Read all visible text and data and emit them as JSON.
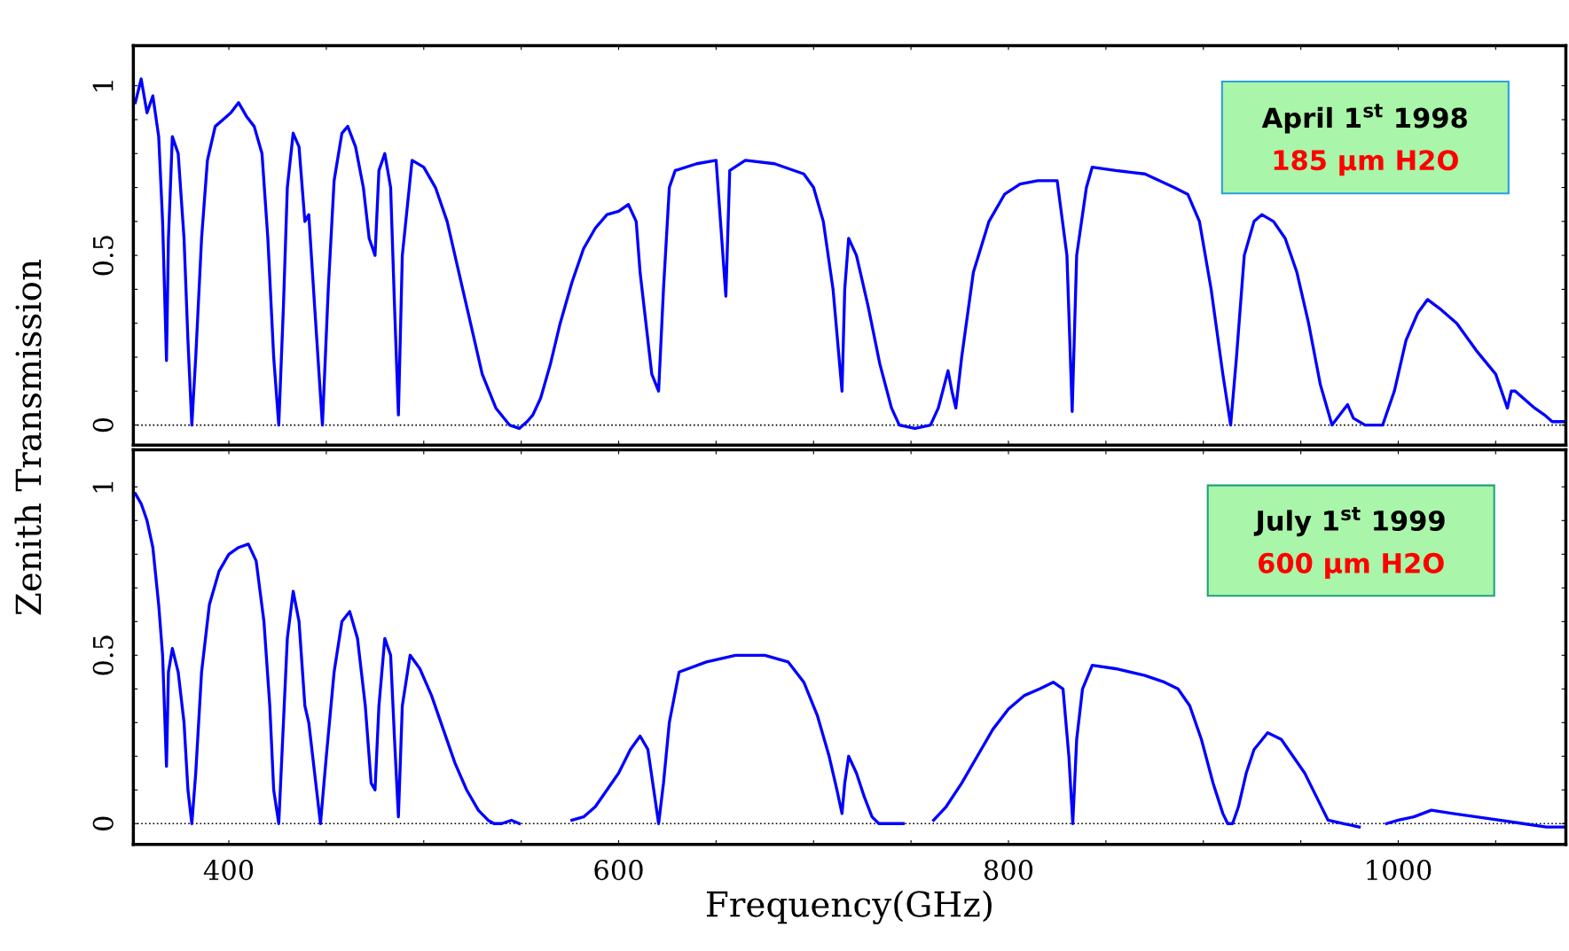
{
  "chart_data": [
    {
      "type": "line",
      "ylabel": "Zenith Transmission",
      "annotations": [
        "April 1$^{st}$ 1998",
        "185 µm H2O"
      ],
      "xlim": [
        351,
        1086
      ],
      "ylim": [
        -0.059,
        1.118
      ],
      "xticks": [
        {
          "value": 400,
          "label": null
        },
        {
          "value": 450,
          "label": null
        },
        {
          "value": 500,
          "label": null
        },
        {
          "value": 550,
          "label": null
        },
        {
          "value": 600,
          "label": null
        },
        {
          "value": 650,
          "label": null
        },
        {
          "value": 700,
          "label": null
        },
        {
          "value": 750,
          "label": null
        },
        {
          "value": 800,
          "label": null
        },
        {
          "value": 850,
          "label": null
        },
        {
          "value": 900,
          "label": null
        },
        {
          "value": 950,
          "label": null
        },
        {
          "value": 1000,
          "label": null
        },
        {
          "value": 1050,
          "label": null
        }
      ],
      "yticks": [
        0,
        {
          "value": 0.1,
          "label": null
        },
        {
          "value": 0.2,
          "label": null
        },
        {
          "value": 0.3,
          "label": null
        },
        {
          "value": 0.4,
          "label": null
        },
        0.5,
        {
          "value": 0.6,
          "label": null
        },
        {
          "value": 0.7,
          "label": null
        },
        {
          "value": 0.8,
          "label": null
        },
        {
          "value": 0.9,
          "label": null
        },
        1
      ],
      "tick_labels": "y",
      "grid": false,
      "ref_lines": [
        {
          "axis": "y",
          "value": 0,
          "color": "#000000",
          "line_style": "dotted"
        }
      ],
      "series": [
        {
          "color": "#0000ff",
          "x": [
            352,
            355,
            358,
            361,
            364,
            366,
            368,
            369,
            371,
            374,
            377,
            379,
            381,
            383,
            386,
            389,
            393,
            397,
            401,
            405,
            409,
            413,
            417,
            420,
            423,
            425.6,
            428,
            430,
            433,
            436,
            439,
            441,
            444,
            448,
            451,
            454,
            458,
            461,
            465,
            469,
            472,
            475,
            477,
            480,
            483,
            485,
            487,
            489,
            494,
            500,
            506,
            512,
            518,
            524,
            530,
            537,
            544,
            549,
            553,
            556,
            560,
            565,
            570,
            576,
            582,
            588,
            594,
            600,
            605,
            609,
            611,
            614,
            617,
            620.5,
            623,
            626,
            629,
            640,
            650,
            655,
            657,
            665,
            680,
            695,
            700,
            705,
            710,
            714.6,
            716,
            718,
            722,
            728,
            734,
            740,
            744,
            752,
            760,
            764,
            769,
            771,
            773,
            776,
            782,
            790,
            798,
            806,
            815,
            825,
            830,
            832.7,
            835,
            840,
            843,
            855,
            870,
            885,
            892,
            898,
            904,
            910,
            914,
            917,
            921,
            926,
            930,
            936,
            942,
            948,
            954,
            960,
            966,
            970,
            974,
            977,
            983,
            992,
            998,
            1004,
            1010,
            1015,
            1022,
            1030,
            1040,
            1050,
            1056,
            1058,
            1060,
            1064,
            1070,
            1075,
            1079,
            1085
          ],
          "values": [
            0.95,
            1.02,
            0.92,
            0.97,
            0.85,
            0.6,
            0.19,
            0.55,
            0.85,
            0.8,
            0.55,
            0.25,
            0.0,
            0.2,
            0.55,
            0.78,
            0.88,
            0.9,
            0.92,
            0.95,
            0.91,
            0.88,
            0.8,
            0.55,
            0.2,
            0.0,
            0.35,
            0.7,
            0.86,
            0.82,
            0.6,
            0.62,
            0.35,
            0.0,
            0.4,
            0.72,
            0.86,
            0.88,
            0.82,
            0.7,
            0.55,
            0.5,
            0.75,
            0.8,
            0.7,
            0.35,
            0.03,
            0.5,
            0.78,
            0.76,
            0.7,
            0.6,
            0.45,
            0.3,
            0.15,
            0.05,
            0.0,
            -0.01,
            0.01,
            0.03,
            0.08,
            0.18,
            0.3,
            0.42,
            0.52,
            0.58,
            0.62,
            0.63,
            0.65,
            0.6,
            0.45,
            0.3,
            0.15,
            0.1,
            0.4,
            0.7,
            0.75,
            0.77,
            0.78,
            0.38,
            0.75,
            0.78,
            0.77,
            0.74,
            0.7,
            0.6,
            0.4,
            0.1,
            0.4,
            0.55,
            0.5,
            0.35,
            0.18,
            0.05,
            0.0,
            -0.01,
            0.0,
            0.05,
            0.16,
            0.1,
            0.05,
            0.2,
            0.45,
            0.6,
            0.68,
            0.71,
            0.72,
            0.72,
            0.5,
            0.04,
            0.5,
            0.7,
            0.76,
            0.75,
            0.74,
            0.7,
            0.68,
            0.6,
            0.4,
            0.15,
            0.0,
            0.2,
            0.5,
            0.6,
            0.62,
            0.6,
            0.55,
            0.45,
            0.3,
            0.12,
            0.0,
            0.03,
            0.06,
            0.02,
            0.0,
            0.0,
            0.1,
            0.25,
            0.33,
            0.37,
            0.34,
            0.3,
            0.22,
            0.15,
            0.05,
            0.1,
            0.1,
            0.08,
            0.05,
            0.03,
            0.01,
            0.01
          ]
        }
      ]
    },
    {
      "type": "line",
      "xlabel": "Frequency(GHz)",
      "annotations": [
        "July 1$^{st}$ 1999",
        "600 µm H2O"
      ],
      "xlim": [
        351,
        1086
      ],
      "ylim": [
        -0.062,
        1.11
      ],
      "xticks": [
        400,
        {
          "value": 450,
          "label": null
        },
        {
          "value": 500,
          "label": null
        },
        {
          "value": 550,
          "label": null
        },
        600,
        {
          "value": 650,
          "label": null
        },
        {
          "value": 700,
          "label": null
        },
        {
          "value": 750,
          "label": null
        },
        800,
        {
          "value": 850,
          "label": null
        },
        {
          "value": 900,
          "label": null
        },
        {
          "value": 950,
          "label": null
        },
        1000,
        {
          "value": 1050,
          "label": null
        }
      ],
      "yticks": [
        0,
        {
          "value": 0.1,
          "label": null
        },
        {
          "value": 0.2,
          "label": null
        },
        {
          "value": 0.3,
          "label": null
        },
        {
          "value": 0.4,
          "label": null
        },
        0.5,
        {
          "value": 0.6,
          "label": null
        },
        {
          "value": 0.7,
          "label": null
        },
        {
          "value": 0.8,
          "label": null
        },
        {
          "value": 0.9,
          "label": null
        },
        1
      ],
      "grid": false,
      "ref_lines": [
        {
          "axis": "y",
          "value": 0,
          "color": "#000000",
          "line_style": "dotted"
        }
      ],
      "series": [
        {
          "color": "#0000ff",
          "x": [
            352,
            355,
            358,
            361,
            364,
            366,
            368,
            369,
            371,
            374,
            377,
            379,
            381,
            383,
            386,
            390,
            395,
            400,
            405,
            410,
            414,
            418,
            421,
            423,
            425.6,
            428,
            430,
            433,
            436,
            439,
            441,
            444,
            447,
            450,
            454,
            458,
            462,
            466,
            470,
            473,
            475,
            477,
            480,
            483,
            485,
            487,
            489,
            493,
            498,
            504,
            510,
            516,
            522,
            528,
            533,
            536,
            540,
            545,
            549,
            null,
            576,
            582,
            588,
            594,
            600,
            606,
            611,
            615,
            618,
            620.5,
            623,
            626,
            631,
            645,
            660,
            675,
            687,
            695,
            702,
            708,
            712,
            714.6,
            716,
            718,
            722,
            726,
            730,
            733.5,
            740,
            746,
            null,
            761.6,
            768,
            776,
            784,
            792,
            800,
            808,
            816,
            823,
            828,
            831,
            833,
            835,
            838,
            843,
            855,
            870,
            880,
            887,
            893,
            899,
            905,
            910,
            912.5,
            915,
            918,
            922,
            926,
            933,
            940,
            946,
            952,
            958,
            964,
            972,
            980,
            null,
            994,
            1000,
            1008,
            1017,
            1028,
            1040,
            1052,
            1064,
            1076,
            1085
          ],
          "values": [
            0.98,
            0.95,
            0.9,
            0.82,
            0.65,
            0.5,
            0.17,
            0.45,
            0.52,
            0.45,
            0.3,
            0.1,
            0.0,
            0.15,
            0.45,
            0.65,
            0.75,
            0.8,
            0.82,
            0.83,
            0.78,
            0.6,
            0.35,
            0.1,
            0.0,
            0.3,
            0.55,
            0.69,
            0.6,
            0.35,
            0.3,
            0.15,
            0.0,
            0.2,
            0.45,
            0.6,
            0.63,
            0.55,
            0.35,
            0.12,
            0.1,
            0.35,
            0.55,
            0.5,
            0.25,
            0.02,
            0.35,
            0.5,
            0.46,
            0.38,
            0.28,
            0.18,
            0.1,
            0.04,
            0.01,
            0.0,
            0.0,
            0.01,
            0.0,
            null,
            0.01,
            0.02,
            0.05,
            0.1,
            0.15,
            0.22,
            0.26,
            0.22,
            0.1,
            0.0,
            0.12,
            0.3,
            0.45,
            0.48,
            0.5,
            0.5,
            0.48,
            0.42,
            0.32,
            0.2,
            0.1,
            0.03,
            0.12,
            0.2,
            0.15,
            0.08,
            0.02,
            0.0,
            0.0,
            0.0,
            null,
            0.01,
            0.05,
            0.12,
            0.2,
            0.28,
            0.34,
            0.38,
            0.4,
            0.42,
            0.4,
            0.2,
            0.0,
            0.25,
            0.4,
            0.47,
            0.46,
            0.44,
            0.42,
            0.4,
            0.35,
            0.25,
            0.12,
            0.03,
            0.0,
            0.0,
            0.05,
            0.15,
            0.22,
            0.27,
            0.25,
            0.2,
            0.15,
            0.08,
            0.01,
            0.0,
            -0.01,
            null,
            0.0,
            0.01,
            0.02,
            0.04,
            0.03,
            0.02,
            0.01,
            0.0,
            -0.01,
            -0.01
          ]
        }
      ]
    }
  ]
}
